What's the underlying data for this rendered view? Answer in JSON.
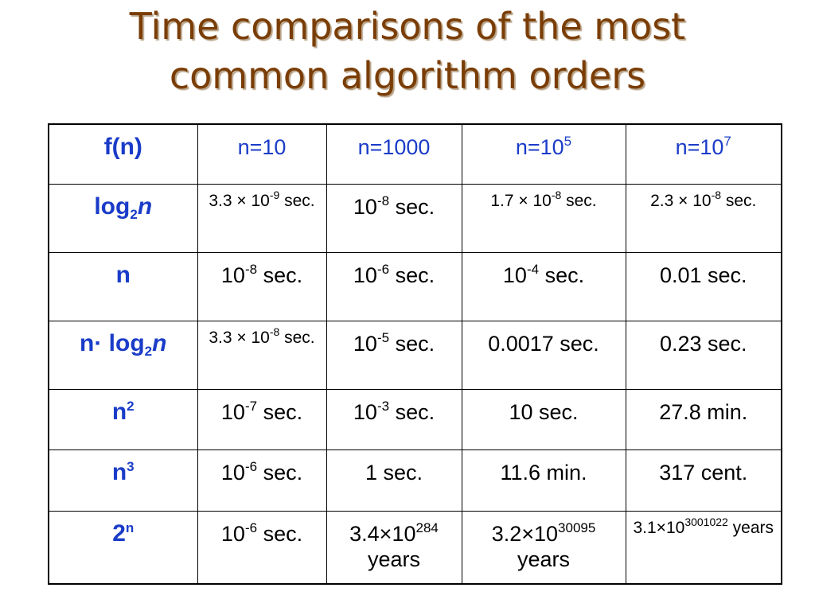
{
  "title": [
    "Time comparisons of the most",
    "common algorithm orders"
  ],
  "table": {
    "rows": [
      [
        [
          "f(n)"
        ],
        [
          "n=10"
        ],
        [
          "n=1000"
        ],
        [
          "n=10",
          {
            "sup": "5"
          }
        ],
        [
          "n=10",
          {
            "sup": "7"
          }
        ]
      ],
      [
        [
          "log",
          {
            "sub": "2"
          },
          {
            "i": "n"
          }
        ],
        [
          "3.3 × 10",
          {
            "sup": "-9"
          },
          " sec."
        ],
        [
          "10",
          {
            "sup": "-8"
          },
          " sec."
        ],
        [
          "1.7 × 10",
          {
            "sup": "-8"
          },
          " sec."
        ],
        [
          "2.3 × 10",
          {
            "sup": "-8"
          },
          " sec."
        ]
      ],
      [
        [
          "n"
        ],
        [
          "10",
          {
            "sup": "-8"
          },
          " sec."
        ],
        [
          "10",
          {
            "sup": "-6"
          },
          " sec."
        ],
        [
          "10",
          {
            "sup": "-4"
          },
          " sec."
        ],
        [
          "0.01 sec."
        ]
      ],
      [
        [
          "n· log",
          {
            "sub": "2"
          },
          {
            "i": "n"
          }
        ],
        [
          "3.3 × 10",
          {
            "sup": "-8"
          },
          " sec."
        ],
        [
          "10",
          {
            "sup": "-5"
          },
          " sec."
        ],
        [
          "0.0017 sec."
        ],
        [
          "0.23 sec."
        ]
      ],
      [
        [
          "n",
          {
            "sup": "2"
          }
        ],
        [
          "10",
          {
            "sup": "-7"
          },
          " sec."
        ],
        [
          "10",
          {
            "sup": "-3"
          },
          " sec."
        ],
        [
          "10 sec."
        ],
        [
          "27.8 min."
        ]
      ],
      [
        [
          "n",
          {
            "sup": "3"
          }
        ],
        [
          "10",
          {
            "sup": "-6"
          },
          " sec."
        ],
        [
          "1 sec."
        ],
        [
          "11.6 min."
        ],
        [
          "317 cent."
        ]
      ],
      [
        [
          "2",
          {
            "sup": "n"
          }
        ],
        [
          "10",
          {
            "sup": "-6"
          },
          " sec."
        ],
        [
          "3.4×10",
          {
            "sup": "284"
          },
          " years"
        ],
        [
          "3.2×10",
          {
            "sup": "30095"
          },
          " years"
        ],
        [
          "3.1×10",
          {
            "sup": "3001022"
          },
          " years"
        ]
      ]
    ]
  }
}
